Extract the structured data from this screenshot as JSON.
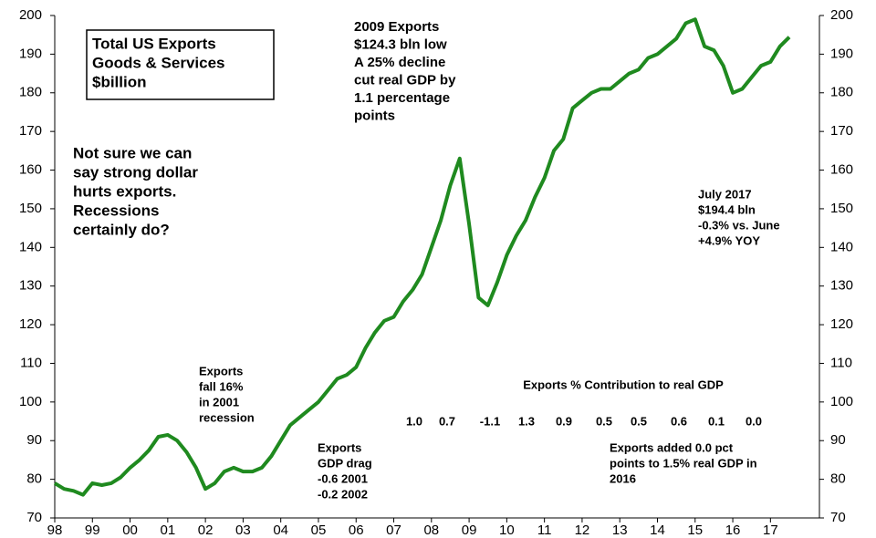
{
  "chart_data": {
    "type": "line",
    "title": [
      "Total US Exports",
      "Goods & Services",
      "$billion"
    ],
    "color": "#1f8a1f",
    "x": [
      1998,
      1998.25,
      1998.5,
      1998.75,
      1999,
      1999.25,
      1999.5,
      1999.75,
      2000,
      2000.25,
      2000.5,
      2000.75,
      2001,
      2001.25,
      2001.5,
      2001.75,
      2002,
      2002.25,
      2002.5,
      2002.75,
      2003,
      2003.25,
      2003.5,
      2003.75,
      2004,
      2004.25,
      2004.5,
      2004.75,
      2005,
      2005.25,
      2005.5,
      2005.75,
      2006,
      2006.25,
      2006.5,
      2006.75,
      2007,
      2007.25,
      2007.5,
      2007.75,
      2008,
      2008.25,
      2008.5,
      2008.75,
      2009,
      2009.25,
      2009.5,
      2009.75,
      2010,
      2010.25,
      2010.5,
      2010.75,
      2011,
      2011.25,
      2011.5,
      2011.75,
      2012,
      2012.25,
      2012.5,
      2012.75,
      2013,
      2013.25,
      2013.5,
      2013.75,
      2014,
      2014.25,
      2014.5,
      2014.75,
      2015,
      2015.25,
      2015.5,
      2015.75,
      2016,
      2016.25,
      2016.5,
      2016.75,
      2017,
      2017.25,
      2017.5
    ],
    "values": [
      79,
      77.5,
      77,
      76,
      79,
      78.5,
      79,
      80.5,
      83,
      85,
      87.5,
      91,
      91.5,
      90,
      87,
      83,
      77.5,
      79,
      82,
      83,
      82,
      82,
      83,
      86,
      90,
      94,
      96,
      98,
      100,
      103,
      106,
      107,
      109,
      114,
      118,
      121,
      122,
      126,
      129,
      133,
      140,
      147,
      156,
      163,
      146,
      127,
      125,
      131,
      138,
      143,
      147,
      153,
      158,
      165,
      168,
      176,
      178,
      180,
      181,
      181,
      183,
      185,
      186,
      189,
      190,
      192,
      194,
      198,
      199,
      192,
      191,
      187,
      180,
      181,
      184,
      187,
      188,
      192,
      194.4
    ],
    "xlim": [
      1998,
      2018.3
    ],
    "xticks": [
      {
        "value": 1998,
        "label": "98"
      },
      {
        "value": 1999,
        "label": "99"
      },
      {
        "value": 2000,
        "label": "00"
      },
      {
        "value": 2001,
        "label": "01"
      },
      {
        "value": 2002,
        "label": "02"
      },
      {
        "value": 2003,
        "label": "03"
      },
      {
        "value": 2004,
        "label": "04"
      },
      {
        "value": 2005,
        "label": "05"
      },
      {
        "value": 2006,
        "label": "06"
      },
      {
        "value": 2007,
        "label": "07"
      },
      {
        "value": 2008,
        "label": "08"
      },
      {
        "value": 2009,
        "label": "09"
      },
      {
        "value": 2010,
        "label": "10"
      },
      {
        "value": 2011,
        "label": "11"
      },
      {
        "value": 2012,
        "label": "12"
      },
      {
        "value": 2013,
        "label": "13"
      },
      {
        "value": 2014,
        "label": "14"
      },
      {
        "value": 2015,
        "label": "15"
      },
      {
        "value": 2016,
        "label": "16"
      },
      {
        "value": 2017,
        "label": "17"
      }
    ],
    "ylim": [
      70,
      200
    ],
    "yticks": [
      70,
      80,
      90,
      100,
      110,
      120,
      130,
      140,
      150,
      160,
      170,
      180,
      190,
      200
    ],
    "y2lim": [
      70,
      200
    ],
    "y2ticks": [
      70,
      80,
      90,
      100,
      110,
      120,
      130,
      140,
      150,
      160,
      170,
      180,
      190,
      200
    ],
    "annotations": [
      [
        "Not sure we can",
        "say strong dollar",
        "hurts exports.",
        "Recessions",
        "certainly do?"
      ],
      [
        "2009 Exports",
        "$124.3 bln low",
        "A 25% decline",
        "cut real GDP by",
        "1.1 percentage",
        "points"
      ],
      [
        "July 2017",
        "$194.4 bln",
        "-0.3% vs. June",
        "+4.9% YOY"
      ],
      [
        "Exports",
        "fall 16%",
        "in 2001",
        "recession"
      ],
      [
        "Exports",
        "GDP drag",
        "-0.6 2001",
        "-0.2 2002"
      ],
      [
        "Exports added 0.0 pct",
        "points to 1.5% real GDP in",
        "2016"
      ]
    ],
    "contribution_title": "Exports % Contribution to real GDP",
    "contributions": [
      "1.0",
      "0.7",
      "-1.1",
      "1.3",
      "0.9",
      "0.5",
      "0.5",
      "0.6",
      "0.1",
      "0.0"
    ]
  }
}
